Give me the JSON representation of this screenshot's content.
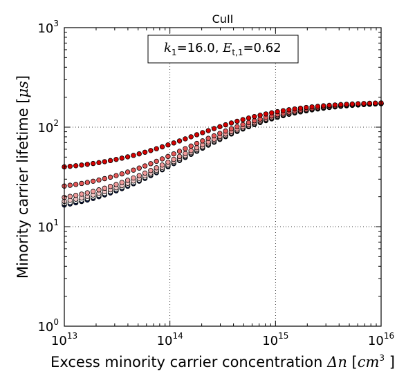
{
  "chart_data": {
    "type": "scatter",
    "title": "CuII",
    "xlabel": {
      "text": "Excess minority carrier concentration ",
      "symbol": "Δn",
      "unit_open": " [",
      "unit": "cm",
      "unit_exp": "3",
      "unit_close": " ]"
    },
    "ylabel": {
      "text": "Minority carrier lifetime [",
      "unit": "μs",
      "close": "]"
    },
    "x_scale": "log",
    "y_scale": "log",
    "xlim": [
      10000000000000.0,
      1e+16
    ],
    "ylim": [
      1,
      1000
    ],
    "grid": true,
    "legend_placement": "top-center",
    "annotation": {
      "k_sym": "k",
      "k_sub": "1",
      "k_val": "=16.0, ",
      "e_sym": "E",
      "e_sub": "t,1",
      "e_val": "=0.62"
    },
    "x_ticks": [
      {
        "base": "10",
        "exp": "13"
      },
      {
        "base": "10",
        "exp": "14"
      },
      {
        "base": "10",
        "exp": "15"
      },
      {
        "base": "10",
        "exp": "16"
      }
    ],
    "y_ticks": [
      {
        "base": "10",
        "exp": "0"
      },
      {
        "base": "10",
        "exp": "1"
      },
      {
        "base": "10",
        "exp": "2"
      },
      {
        "base": "10",
        "exp": "3"
      }
    ],
    "x_range": {
      "start": 10000000000000.0,
      "end": 1e+16,
      "points": 56
    },
    "series": [
      {
        "color": "#0a1a4a",
        "tau_low": 13.2,
        "tau_high": 180,
        "n_mid": 500000000000000.0
      },
      {
        "color": "#ffffff",
        "tau_low": 13.8,
        "tau_high": 180,
        "n_mid": 490000000000000.0
      },
      {
        "color": "#f4c7c7",
        "tau_low": 14.6,
        "tau_high": 180,
        "n_mid": 480000000000000.0
      },
      {
        "color": "#f09a9a",
        "tau_low": 16.2,
        "tau_high": 180,
        "n_mid": 460000000000000.0
      },
      {
        "color": "#e45656",
        "tau_low": 22.0,
        "tau_high": 180,
        "n_mid": 430000000000000.0
      },
      {
        "color": "#d40000",
        "tau_low": 36.0,
        "tau_high": 180,
        "n_mid": 360000000000000.0
      }
    ]
  }
}
